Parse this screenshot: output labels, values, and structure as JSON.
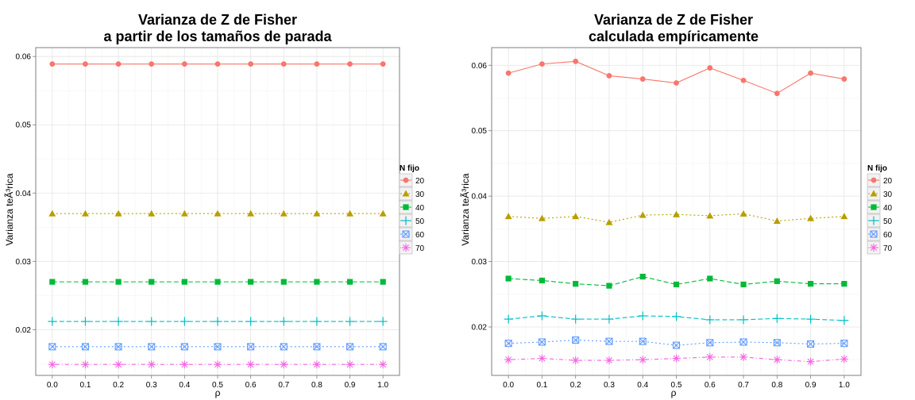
{
  "chart_data": [
    {
      "type": "line",
      "title_lines": [
        "Varianza de Z de Fisher",
        "a partir de los tamaños de parada"
      ],
      "xlabel": "ρ",
      "ylabel": "Varianza teÃ³rica",
      "x": [
        0.0,
        0.1,
        0.2,
        0.3,
        0.4,
        0.5,
        0.6,
        0.7,
        0.8,
        0.9,
        1.0
      ],
      "x_tick_labels": [
        "0.0",
        "0.1",
        "0.2",
        "0.3",
        "0.4",
        "0.5",
        "0.6",
        "0.7",
        "0.8",
        "0.9",
        "1.0"
      ],
      "xlim": [
        -0.05,
        1.05
      ],
      "y_ticks": [
        0.02,
        0.03,
        0.04,
        0.05,
        0.06
      ],
      "y_tick_labels": [
        "0.02",
        "0.03",
        "0.04",
        "0.05",
        "0.06"
      ],
      "ylim": [
        0.0133,
        0.0613
      ],
      "grid": true,
      "legend": {
        "title": "N fijo",
        "position": "right",
        "entries": [
          "20",
          "30",
          "40",
          "50",
          "60",
          "70"
        ]
      },
      "series": [
        {
          "name": "20",
          "color": "#F8766D",
          "marker": "circle",
          "dash": "none",
          "values": [
            0.0589,
            0.0589,
            0.0589,
            0.0589,
            0.0589,
            0.0589,
            0.0589,
            0.0589,
            0.0589,
            0.0589,
            0.0589
          ]
        },
        {
          "name": "30",
          "color": "#B79F00",
          "marker": "triangle",
          "dash": "dotted",
          "values": [
            0.037,
            0.037,
            0.037,
            0.037,
            0.037,
            0.037,
            0.037,
            0.037,
            0.037,
            0.037,
            0.037
          ]
        },
        {
          "name": "40",
          "color": "#00BA38",
          "marker": "square",
          "dash": "dashed",
          "values": [
            0.027,
            0.027,
            0.027,
            0.027,
            0.027,
            0.027,
            0.027,
            0.027,
            0.027,
            0.027,
            0.027
          ]
        },
        {
          "name": "50",
          "color": "#00BFC4",
          "marker": "plus",
          "dash": "dashed",
          "values": [
            0.0212,
            0.0212,
            0.0212,
            0.0212,
            0.0212,
            0.0212,
            0.0212,
            0.0212,
            0.0212,
            0.0212,
            0.0212
          ]
        },
        {
          "name": "60",
          "color": "#619CFF",
          "marker": "boxx",
          "dash": "dotted",
          "values": [
            0.0175,
            0.0175,
            0.0175,
            0.0175,
            0.0175,
            0.0175,
            0.0175,
            0.0175,
            0.0175,
            0.0175,
            0.0175
          ]
        },
        {
          "name": "70",
          "color": "#F564E3",
          "marker": "asterisk",
          "dash": "dotdash",
          "values": [
            0.0149,
            0.0149,
            0.0149,
            0.0149,
            0.0149,
            0.0149,
            0.0149,
            0.0149,
            0.0149,
            0.0149,
            0.0149
          ]
        }
      ]
    },
    {
      "type": "line",
      "title_lines": [
        "Varianza de Z de Fisher",
        "calculada empíricamente"
      ],
      "xlabel": "ρ",
      "ylabel": "Varianza teÃ³rica",
      "x": [
        0.0,
        0.1,
        0.2,
        0.3,
        0.4,
        0.5,
        0.6,
        0.7,
        0.8,
        0.9,
        1.0
      ],
      "x_tick_labels": [
        "0.0",
        "0.1",
        "0.2",
        "0.3",
        "0.4",
        "0.5",
        "0.6",
        "0.7",
        "0.8",
        "0.9",
        "1.0"
      ],
      "xlim": [
        -0.05,
        1.05
      ],
      "y_ticks": [
        0.02,
        0.03,
        0.04,
        0.05,
        0.06
      ],
      "y_tick_labels": [
        "0.02",
        "0.03",
        "0.04",
        "0.05",
        "0.06"
      ],
      "ylim": [
        0.0126,
        0.0627
      ],
      "grid": true,
      "legend": {
        "title": "N fijo",
        "position": "right",
        "entries": [
          "20",
          "30",
          "40",
          "50",
          "60",
          "70"
        ]
      },
      "series": [
        {
          "name": "20",
          "color": "#F8766D",
          "marker": "circle",
          "dash": "none",
          "values": [
            0.0588,
            0.0602,
            0.0606,
            0.0584,
            0.0579,
            0.0573,
            0.0596,
            0.0577,
            0.0557,
            0.0588,
            0.0579
          ]
        },
        {
          "name": "30",
          "color": "#B79F00",
          "marker": "triangle",
          "dash": "dotted",
          "values": [
            0.0369,
            0.0366,
            0.0369,
            0.036,
            0.0371,
            0.0372,
            0.037,
            0.0373,
            0.0362,
            0.0366,
            0.0369
          ]
        },
        {
          "name": "40",
          "color": "#00BA38",
          "marker": "square",
          "dash": "dashed",
          "values": [
            0.0274,
            0.0271,
            0.0266,
            0.0263,
            0.0277,
            0.0265,
            0.0274,
            0.0265,
            0.027,
            0.0266,
            0.0266
          ]
        },
        {
          "name": "50",
          "color": "#00BFC4",
          "marker": "plus",
          "dash": "dashed",
          "values": [
            0.0212,
            0.0217,
            0.0212,
            0.0212,
            0.0217,
            0.0216,
            0.0211,
            0.0211,
            0.0213,
            0.0212,
            0.021
          ]
        },
        {
          "name": "60",
          "color": "#619CFF",
          "marker": "boxx",
          "dash": "dotted",
          "values": [
            0.0175,
            0.0177,
            0.018,
            0.0178,
            0.0178,
            0.0172,
            0.0176,
            0.0177,
            0.0176,
            0.0174,
            0.0175
          ]
        },
        {
          "name": "70",
          "color": "#F564E3",
          "marker": "asterisk",
          "dash": "dotdash",
          "values": [
            0.015,
            0.0152,
            0.0149,
            0.0149,
            0.015,
            0.0152,
            0.0154,
            0.0154,
            0.015,
            0.0147,
            0.0151
          ]
        }
      ]
    }
  ]
}
